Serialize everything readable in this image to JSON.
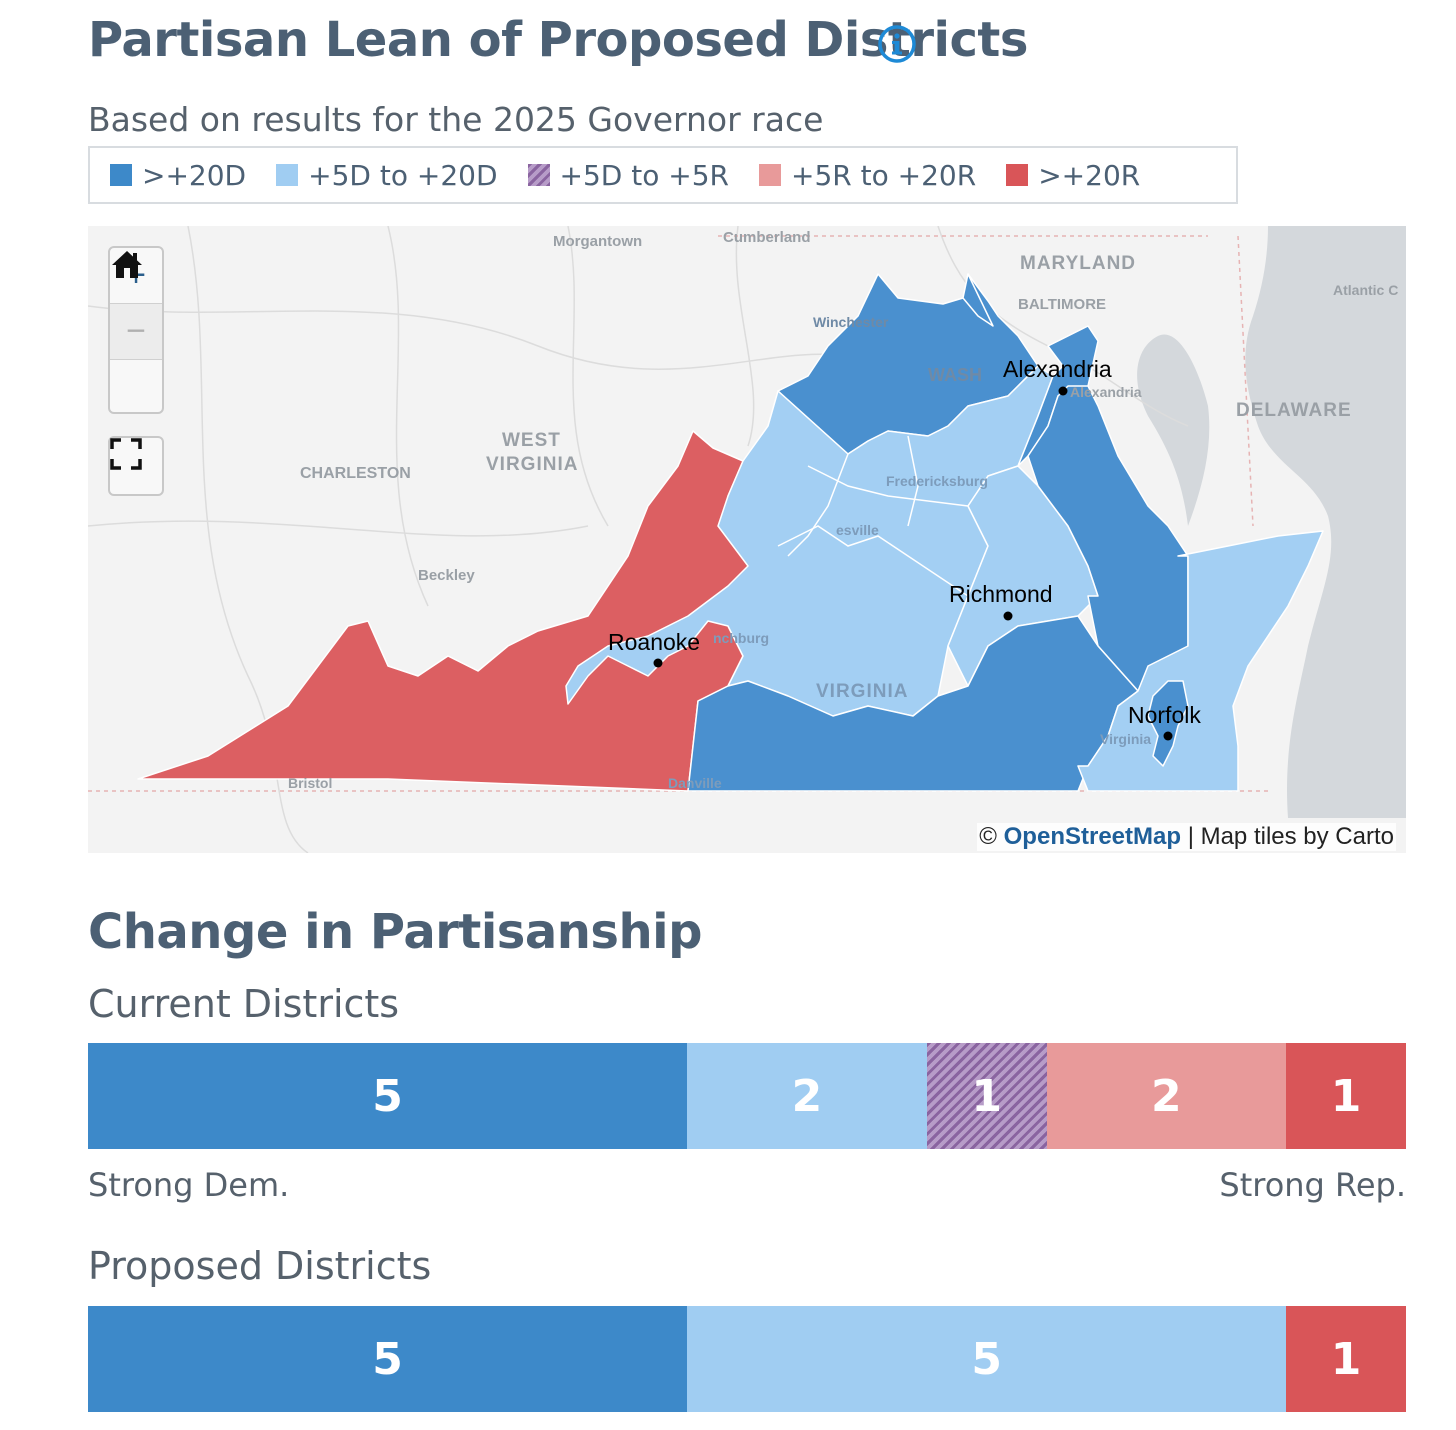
{
  "header": {
    "title": "Partisan Lean of Proposed Districts",
    "subtitle": "Based on results for the 2025 Governor race"
  },
  "legend": [
    {
      "label": ">+20D",
      "color": "#3d89c9"
    },
    {
      "label": "+5D to +20D",
      "color": "#a0cdf2"
    },
    {
      "label": "+5D to +5R",
      "color": "#8a64a0",
      "pattern": "hatch"
    },
    {
      "label": "+5R to +20R",
      "color": "#e89a9a"
    },
    {
      "label": ">+20R",
      "color": "#d95558"
    }
  ],
  "map": {
    "controls": {
      "zoom_in": "+",
      "zoom_out": "−"
    },
    "city_labels": {
      "alexandria": "Alexandria",
      "richmond": "Richmond",
      "roanoke": "Roanoke",
      "norfolk": "Norfolk"
    },
    "basemap_labels": {
      "morgantown": "Morgantown",
      "cumberland": "Cumberland",
      "maryland": "MARYLAND",
      "baltimore": "BALTIMORE",
      "atlantic": "Atlantic C",
      "winchester": "Winchester",
      "washington": "WASH",
      "alexandria_small": "Alexandria",
      "delaware": "DELAWARE",
      "west": "WEST",
      "virginia_wv": "VIRGINIA",
      "charleston": "CHARLESTON",
      "fredericksburg": "Fredericksburg",
      "charlottesville": "esville",
      "beckley": "Beckley",
      "lynchburg": "nchburg",
      "virginia": "VIRGINIA",
      "bristol": "Bristol",
      "danville": "Danville",
      "virginia_beach": "Virginia"
    },
    "attribution": {
      "prefix": "©",
      "link": "OpenStreetMap",
      "suffix": "| Map tiles by Carto"
    }
  },
  "change": {
    "title": "Change in Partisanship",
    "current": {
      "label": "Current Districts",
      "segments": [
        {
          "count": 5,
          "category": ">+20D",
          "color": "#3d89c9"
        },
        {
          "count": 2,
          "category": "+5D to +20D",
          "color": "#a0cdf2"
        },
        {
          "count": 1,
          "category": "+5D to +5R",
          "color": "#8a64a0",
          "pattern": "hatch"
        },
        {
          "count": 2,
          "category": "+5R to +20R",
          "color": "#e89a9a"
        },
        {
          "count": 1,
          "category": ">+20R",
          "color": "#d95558"
        }
      ]
    },
    "proposed": {
      "label": "Proposed Districts",
      "segments": [
        {
          "count": 5,
          "category": ">+20D",
          "color": "#3d89c9"
        },
        {
          "count": 5,
          "category": "+5D to +20D",
          "color": "#a0cdf2"
        },
        {
          "count": 1,
          "category": ">+20R",
          "color": "#d95558"
        }
      ]
    },
    "axis": {
      "left": "Strong Dem.",
      "right": "Strong Rep."
    }
  }
}
